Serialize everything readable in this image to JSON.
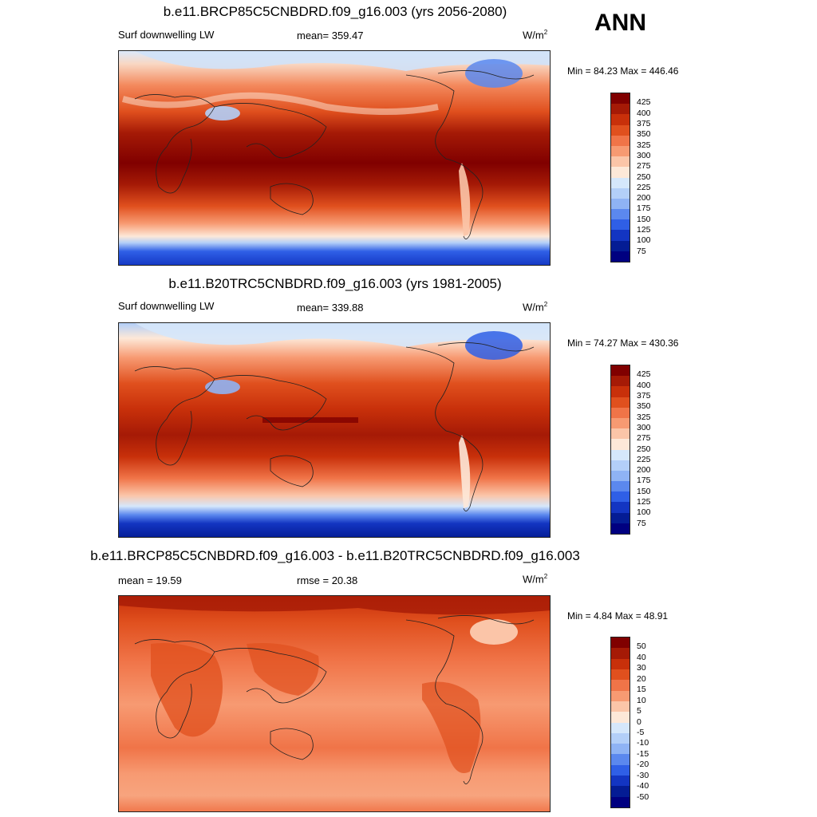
{
  "season": "ANN",
  "colors": {
    "abs_scale": [
      "#800000",
      "#a51a06",
      "#c8300a",
      "#e0501e",
      "#f07448",
      "#f79a72",
      "#fbc5a8",
      "#fde8d8",
      "#d5e7fb",
      "#b3cff8",
      "#8fb3f4",
      "#5b88ee",
      "#2f5fe6",
      "#1335c2",
      "#041c94",
      "#000080"
    ],
    "diff_scale": [
      "#800000",
      "#a51a06",
      "#c8300a",
      "#e0501e",
      "#f07448",
      "#f79a72",
      "#fbc5a8",
      "#fde8d8",
      "#d5e7fb",
      "#b3cff8",
      "#8fb3f4",
      "#5b88ee",
      "#2f5fe6",
      "#1335c2",
      "#041c94",
      "#000080"
    ]
  },
  "panels": [
    {
      "title": "b.e11.BRCP85C5CNBDRD.f09_g16.003 (yrs 2056-2080)",
      "field": "Surf downwelling LW",
      "stat": "mean= 359.47",
      "units": "W/m",
      "units_exp": "2",
      "minmax": "Min =  84.23 Max = 446.46",
      "ticks": [
        "425",
        "400",
        "375",
        "350",
        "325",
        "300",
        "275",
        "250",
        "225",
        "200",
        "175",
        "150",
        "125",
        "100",
        "75"
      ]
    },
    {
      "title": "b.e11.B20TRC5CNBDRD.f09_g16.003 (yrs 1981-2005)",
      "field": "Surf downwelling LW",
      "stat": "mean= 339.88",
      "units": "W/m",
      "units_exp": "2",
      "minmax": "Min =  74.27 Max = 430.36",
      "ticks": [
        "425",
        "400",
        "375",
        "350",
        "325",
        "300",
        "275",
        "250",
        "225",
        "200",
        "175",
        "150",
        "125",
        "100",
        "75"
      ]
    },
    {
      "title": "b.e11.BRCP85C5CNBDRD.f09_g16.003 - b.e11.B20TRC5CNBDRD.f09_g16.003",
      "stat": "mean =  19.59",
      "rmse": "rmse =  20.38",
      "units": "W/m",
      "units_exp": "2",
      "minmax": "Min =   4.84 Max =  48.91",
      "ticks": [
        "50",
        "40",
        "30",
        "20",
        "15",
        "10",
        "5",
        "0",
        "-5",
        "-10",
        "-15",
        "-20",
        "-30",
        "-40",
        "-50"
      ]
    }
  ]
}
